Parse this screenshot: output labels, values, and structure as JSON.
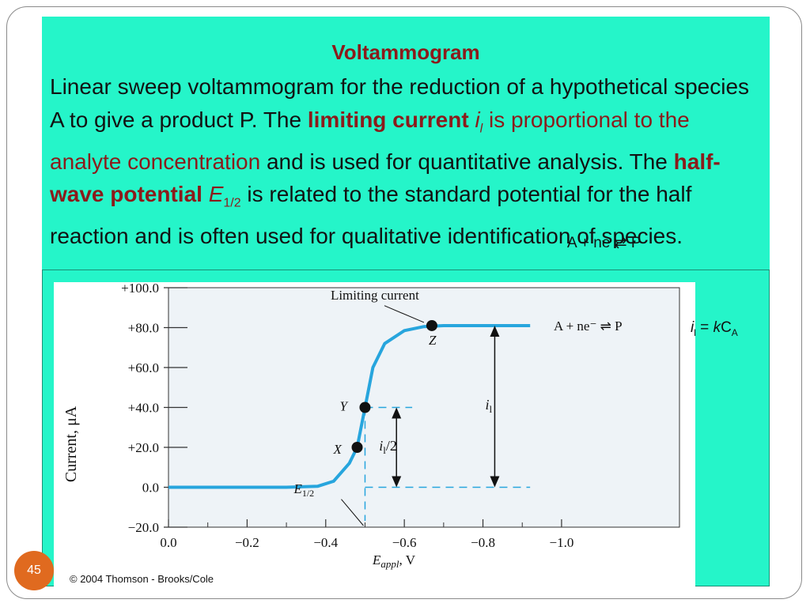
{
  "slide": {
    "title": "Voltammogram",
    "body": {
      "p1": "Linear sweep voltammogram for the reduction of a hypothetical species A to give a product P. The ",
      "limiting_current": "limiting current",
      "il_symbol": "i",
      "il_sub": "l",
      "p2": " is proportional to the analyte concentration",
      "p3": " and is used for quantitative analysis. The ",
      "half_wave_potential": "half-wave potential",
      "e_symbol": "E",
      "e_sub": "1/2",
      "p4": " is related to the standard potential for the half reaction and is often used for qualitative identification of species."
    },
    "overlay_equation": "A + ne ⇄ P",
    "side_equation": {
      "i": "i",
      "i_sub": "l",
      "eq": " = ",
      "k": "k",
      "c": "C",
      "c_sub": "A"
    },
    "slide_number": "45"
  },
  "chart_data": {
    "type": "line",
    "xlabel": "E",
    "xlabel_sub": "appl",
    "xlabel_unit": ", V",
    "ylabel": "Current, μA",
    "x_ticks": [
      "0.0",
      "−0.2",
      "−0.4",
      "−0.6",
      "−0.8",
      "−1.0"
    ],
    "y_ticks": [
      "+100.0",
      "+80.0",
      "+60.0",
      "+40.0",
      "+20.0",
      "0.0",
      "−20.0"
    ],
    "xlim": [
      0.0,
      -1.3
    ],
    "ylim": [
      -20,
      100
    ],
    "series": [
      {
        "values": [
          {
            "x": 0.0,
            "y": 0.0
          },
          {
            "x": -0.3,
            "y": 0.0
          },
          {
            "x": -0.38,
            "y": 0.5
          },
          {
            "x": -0.42,
            "y": 3.0
          },
          {
            "x": -0.46,
            "y": 12.0
          },
          {
            "x": -0.48,
            "y": 20.0
          },
          {
            "x": -0.5,
            "y": 40.0
          },
          {
            "x": -0.52,
            "y": 60.0
          },
          {
            "x": -0.55,
            "y": 72.0
          },
          {
            "x": -0.6,
            "y": 78.5
          },
          {
            "x": -0.65,
            "y": 80.5
          },
          {
            "x": -0.7,
            "y": 81.0
          },
          {
            "x": -0.92,
            "y": 81.0
          }
        ],
        "color": "#27a5dd"
      }
    ],
    "points": [
      {
        "label": "X",
        "x": -0.48,
        "y": 20.0
      },
      {
        "label": "Y",
        "x": -0.5,
        "y": 40.0
      },
      {
        "label": "Z",
        "x": -0.67,
        "y": 81.0
      }
    ],
    "annotations": {
      "limiting_current": "Limiting current",
      "reaction": "A + ne⁻ ⇌ P",
      "il": "i",
      "il_sub": "l",
      "il_half": "i",
      "il_half_sub": "l",
      "il_half_tail": "/2",
      "e_half": "E",
      "e_half_sub": "1/2",
      "il_arrow_x": -0.83,
      "il_half_arrow_x": -0.58,
      "e_half_x": -0.5
    },
    "copyright": "© 2004 Thomson - Brooks/Cole"
  }
}
